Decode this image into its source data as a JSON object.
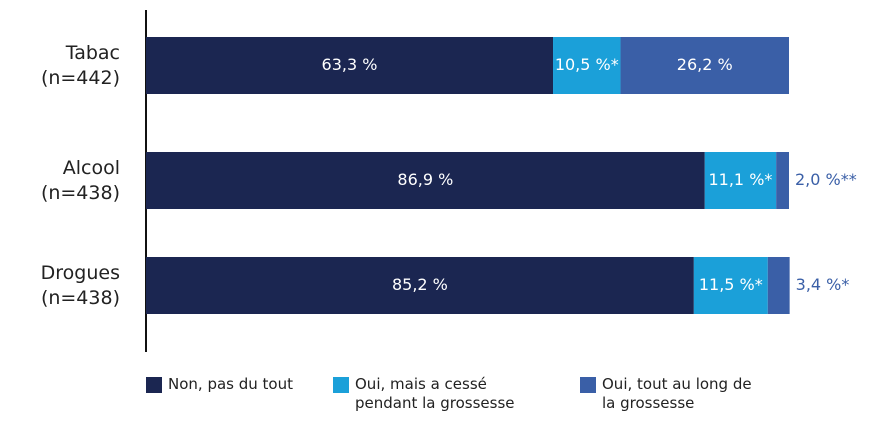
{
  "chart_data": {
    "type": "stacked-bar-horizontal",
    "categories": [
      "Tabac (n=442)",
      "Alcool (n=438)",
      "Drogues (n=438)"
    ],
    "series": [
      {
        "name": "Non, pas du tout",
        "color": "#1b2651",
        "values": [
          63.3,
          86.9,
          85.2
        ],
        "value_labels": [
          "63,3 %",
          "86,9 %",
          "85,2 %"
        ]
      },
      {
        "name": "Oui, mais a cessé pendant la grossesse",
        "color": "#1ba0d9",
        "values": [
          10.5,
          11.1,
          11.5
        ],
        "value_labels": [
          "10,5 %*",
          "11,1 %*",
          "11,5 %*"
        ]
      },
      {
        "name": "Oui, tout au long de la grossesse",
        "color": "#3a5fa7",
        "values": [
          26.2,
          2.0,
          3.4
        ],
        "value_labels": [
          "26,2 %",
          "2,0 %**",
          "3,4 %*"
        ]
      }
    ],
    "xlim": [
      0,
      100
    ]
  }
}
